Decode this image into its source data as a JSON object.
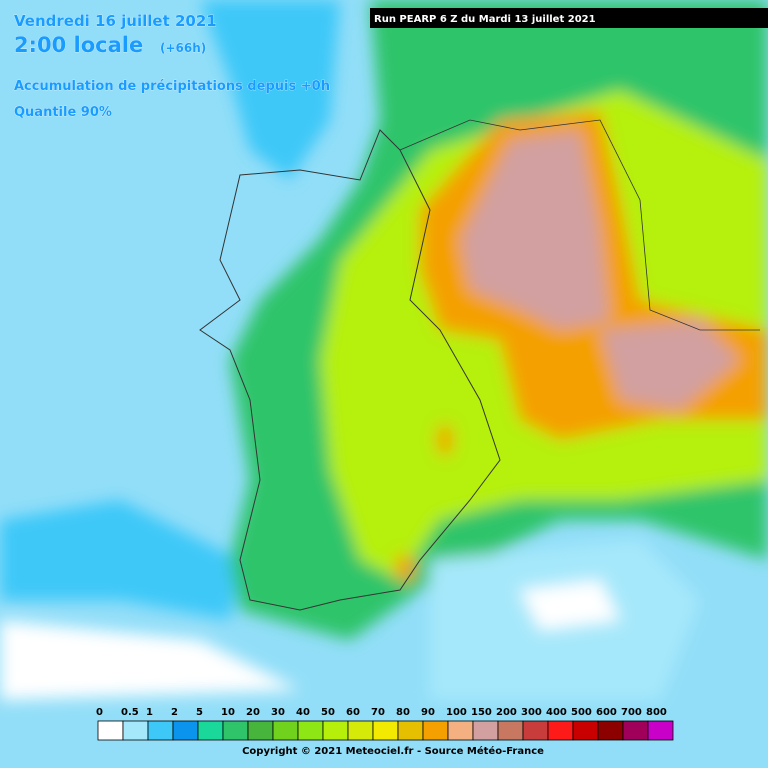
{
  "header": {
    "date": "Vendredi 16 juillet 2021",
    "time": "2:00 locale",
    "lead": "(+66h)",
    "variable": "Accumulation de précipitations depuis +0h",
    "quantile": "Quantile 90%",
    "run": "Run PEARP 6 Z du Mardi 13 juillet 2021"
  },
  "legend": {
    "labels": [
      0,
      0.5,
      1,
      2,
      5,
      10,
      20,
      30,
      40,
      50,
      60,
      70,
      80,
      90,
      100,
      150,
      200,
      300,
      400,
      500,
      600,
      700,
      800
    ],
    "colors": [
      "#ffffff",
      "#a6e8fb",
      "#3ec8f8",
      "#0a94ee",
      "#1ad89a",
      "#2fc46a",
      "#47b43c",
      "#70d21c",
      "#8ee614",
      "#b6f00a",
      "#d6ea0a",
      "#f2ea00",
      "#e6c000",
      "#f4a000",
      "#f4b080",
      "#d2a0a0",
      "#c87860",
      "#c83c3c",
      "#ff1a1a",
      "#c80000",
      "#8c0000",
      "#a0005a",
      "#c800c8"
    ]
  },
  "footer": {
    "copyright": "Copyright © 2021 Meteociel.fr - Source Météo-France"
  }
}
